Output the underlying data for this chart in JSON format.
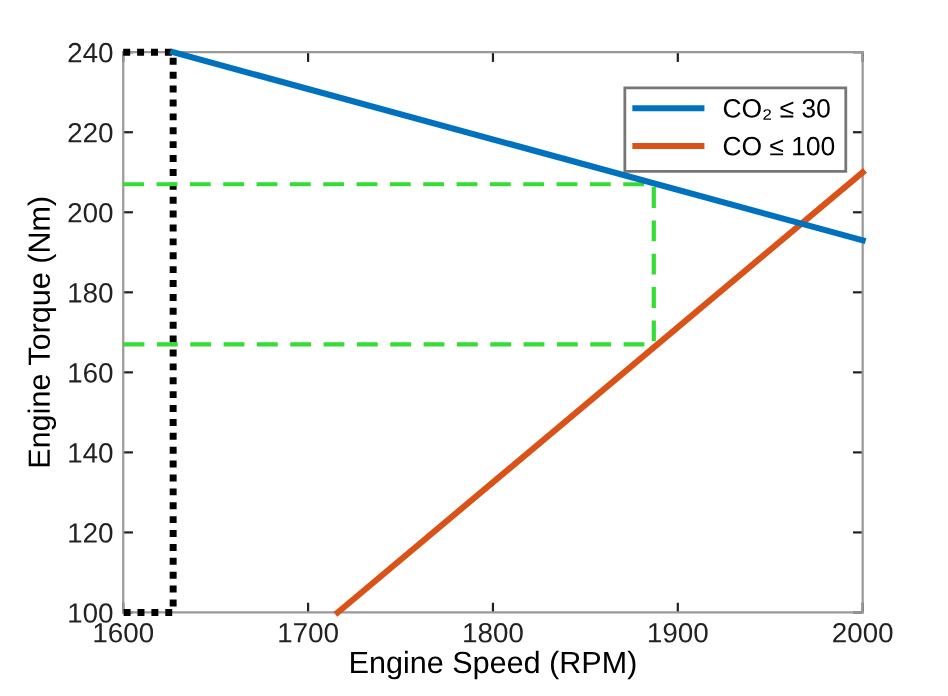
{
  "chart_data": {
    "type": "line",
    "xlabel": "Engine Speed (RPM)",
    "ylabel": "Engine Torque (Nm)",
    "xlim": [
      1600,
      2000
    ],
    "xticks": [
      1600,
      1700,
      1800,
      1900,
      2000
    ],
    "ylim": [
      100,
      240
    ],
    "yticks": [
      100,
      120,
      140,
      160,
      180,
      200,
      220,
      240
    ],
    "grid": false,
    "legend": "top right",
    "marker": "none",
    "series": [
      {
        "name": "CO₂ ≤ 30",
        "color": "#0072bd",
        "x": [
          1627,
          2000
        ],
        "values": [
          240,
          193
        ],
        "line_style": "solid"
      },
      {
        "name": "CO ≤ 100",
        "color": "#d95319",
        "x": [
          1716,
          2000
        ],
        "values": [
          100,
          210
        ],
        "line_style": "solid"
      },
      {
        "color": "#33dd33",
        "x": [
          1600,
          1887,
          1887,
          1600
        ],
        "values": [
          207,
          207,
          167,
          167
        ],
        "line_style": "dashed"
      },
      {
        "color": "#000000",
        "x": [
          1600,
          1627,
          1627,
          1600
        ],
        "values": [
          240,
          240,
          100,
          100
        ],
        "line_style": "dotted"
      }
    ]
  }
}
